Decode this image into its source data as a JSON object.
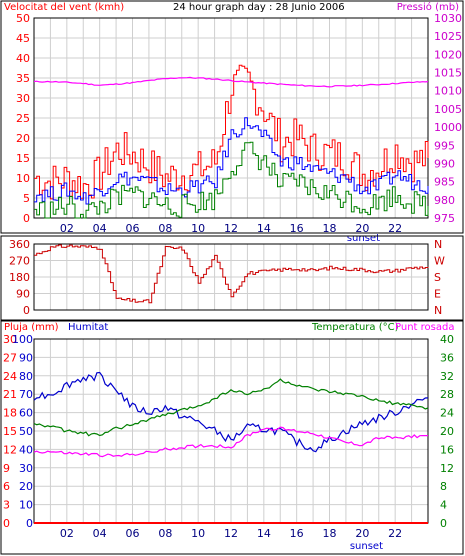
{
  "chart_data": [
    {
      "type": "line",
      "title": "24 hour graph day : 28 Junio 2006",
      "ylabel": "Velocitat del vent (kmh)",
      "y2label": "Pressió (mb)",
      "x_ticks": [
        "02",
        "04",
        "06",
        "08",
        "10",
        "12",
        "14",
        "16",
        "18",
        "20",
        "22"
      ],
      "x_annotation": "sunset",
      "ylim": [
        0,
        50
      ],
      "y_ticks": [
        0,
        5,
        10,
        15,
        20,
        25,
        30,
        35,
        40,
        45,
        50
      ],
      "y2lim": [
        975,
        1030
      ],
      "y2_ticks": [
        975,
        980,
        985,
        990,
        995,
        1000,
        1005,
        1010,
        1015,
        1020,
        1025,
        1030
      ],
      "grid": true,
      "colors": {
        "gust": "#ff0000",
        "avg": "#0000ff",
        "min": "#008000",
        "pressure": "#ff00ff",
        "left_axis": "#ff0000",
        "right_axis": "#cc00cc"
      },
      "series": [
        {
          "key": "gust",
          "color": "#ff0000",
          "x": [
            0,
            1,
            2,
            3,
            4,
            5,
            6,
            7,
            8,
            9,
            10,
            11,
            12,
            13,
            14,
            15,
            16,
            17,
            18,
            19,
            20,
            21,
            22,
            23,
            24
          ],
          "values": [
            10,
            9,
            10,
            8,
            11,
            17,
            16,
            13,
            10,
            11,
            12,
            14,
            33,
            34,
            27,
            19,
            20,
            17,
            16,
            15,
            11,
            13,
            17,
            14,
            15
          ]
        },
        {
          "key": "avg",
          "color": "#0000ff",
          "x": [
            0,
            1,
            2,
            3,
            4,
            5,
            6,
            7,
            8,
            9,
            10,
            11,
            12,
            13,
            14,
            15,
            16,
            17,
            18,
            19,
            20,
            21,
            22,
            23,
            24
          ],
          "values": [
            6,
            6,
            7,
            5,
            7,
            10,
            10,
            9,
            7,
            7,
            8,
            9,
            21,
            24,
            20,
            14,
            14,
            12,
            11,
            10,
            7,
            8,
            11,
            9,
            8
          ]
        },
        {
          "key": "min",
          "color": "#008000",
          "x": [
            0,
            1,
            2,
            3,
            4,
            5,
            6,
            7,
            8,
            9,
            10,
            11,
            12,
            13,
            14,
            15,
            16,
            17,
            18,
            19,
            20,
            21,
            22,
            23,
            24
          ],
          "values": [
            2,
            2,
            3,
            1,
            3,
            5,
            6,
            5,
            3,
            3,
            4,
            5,
            13,
            17,
            14,
            8,
            9,
            7,
            6,
            5,
            3,
            4,
            6,
            4,
            3
          ]
        },
        {
          "key": "pressure",
          "color": "#ff00ff",
          "axis": "right",
          "x": [
            0,
            1,
            2,
            3,
            4,
            5,
            6,
            7,
            8,
            9,
            10,
            11,
            12,
            13,
            14,
            15,
            16,
            17,
            18,
            19,
            20,
            21,
            22,
            23,
            24
          ],
          "values": [
            1012.5,
            1012.5,
            1012.3,
            1012,
            1011.5,
            1011.8,
            1012.2,
            1012.8,
            1013.3,
            1013.6,
            1013.5,
            1013.2,
            1012.8,
            1012.4,
            1012.1,
            1011.8,
            1011.5,
            1011.3,
            1011.2,
            1011.3,
            1011.5,
            1011.7,
            1012,
            1012.3,
            1012.5
          ]
        }
      ]
    },
    {
      "type": "line",
      "ylim": [
        0,
        360
      ],
      "y_ticks": [
        0,
        90,
        180,
        270,
        360
      ],
      "compass_labels": [
        "N",
        "W",
        "S",
        "E",
        "N"
      ],
      "grid": true,
      "colors": {
        "direction": "#ff0000"
      },
      "series": [
        {
          "key": "direction",
          "color": "#cc0000",
          "x": [
            0,
            1,
            2,
            3,
            4,
            5,
            6,
            7,
            8,
            9,
            10,
            11,
            12,
            13,
            14,
            15,
            16,
            17,
            18,
            19,
            20,
            21,
            22,
            23,
            24
          ],
          "values": [
            300,
            340,
            350,
            345,
            340,
            60,
            50,
            45,
            340,
            335,
            150,
            290,
            80,
            200,
            210,
            220,
            225,
            215,
            230,
            225,
            220,
            210,
            215,
            230,
            235
          ]
        }
      ]
    },
    {
      "type": "line",
      "ylabel": "Pluja (mm)",
      "ylabel2": "Humitat",
      "y2label": "Temperatura (°C)",
      "y2label2": "Punt rosada",
      "x_ticks": [
        "02",
        "04",
        "06",
        "08",
        "10",
        "12",
        "14",
        "16",
        "18",
        "20",
        "22"
      ],
      "x_annotation": "sunset",
      "rain_ticks": [
        0,
        3,
        6,
        9,
        12,
        15,
        18,
        21,
        24,
        27,
        30
      ],
      "humidity_ticks": [
        0,
        10,
        20,
        30,
        40,
        50,
        60,
        70,
        80,
        90,
        100
      ],
      "ylim": [
        0,
        100
      ],
      "y2lim": [
        0,
        40
      ],
      "y2_ticks": [
        0,
        4,
        8,
        12,
        16,
        20,
        24,
        28,
        32,
        36,
        40
      ],
      "grid": true,
      "colors": {
        "rain": "#ff0000",
        "humidity": "#0000cc",
        "temperature": "#008000",
        "dewpoint": "#ff00ff"
      },
      "series": [
        {
          "key": "rain",
          "color": "#ff0000",
          "x": [
            0,
            24
          ],
          "values": [
            0,
            0
          ]
        },
        {
          "key": "humidity",
          "color": "#0000cc",
          "x": [
            0,
            1,
            2,
            3,
            4,
            5,
            6,
            7,
            8,
            9,
            10,
            11,
            12,
            13,
            14,
            15,
            16,
            17,
            18,
            19,
            20,
            21,
            22,
            23,
            24
          ],
          "values": [
            69,
            70,
            75,
            79,
            80,
            73,
            63,
            60,
            63,
            58,
            55,
            50,
            45,
            52,
            51,
            50,
            44,
            40,
            45,
            50,
            54,
            57,
            60,
            65,
            68
          ]
        },
        {
          "key": "temperature",
          "color": "#008000",
          "axis": "right",
          "x": [
            0,
            1,
            2,
            3,
            4,
            5,
            6,
            7,
            8,
            9,
            10,
            11,
            12,
            13,
            14,
            15,
            16,
            17,
            18,
            19,
            20,
            21,
            22,
            23,
            24
          ],
          "values": [
            21.5,
            21,
            20,
            19.5,
            19,
            20.5,
            21.5,
            22.5,
            23.5,
            24.5,
            25.5,
            27,
            29,
            28,
            29,
            31,
            30,
            29,
            28.5,
            28,
            27.5,
            26.5,
            26,
            25.5,
            25
          ]
        },
        {
          "key": "dewpoint",
          "color": "#ff00ff",
          "axis": "right",
          "x": [
            0,
            1,
            2,
            3,
            4,
            5,
            6,
            7,
            8,
            9,
            10,
            11,
            12,
            13,
            14,
            15,
            16,
            17,
            18,
            19,
            20,
            21,
            22,
            23,
            24
          ],
          "values": [
            15.5,
            15.5,
            15.2,
            15,
            14.8,
            14.5,
            15,
            15.3,
            16,
            16.4,
            16.8,
            16.8,
            16.5,
            19,
            20.5,
            20.5,
            20,
            19.5,
            18.5,
            17.5,
            17,
            18.5,
            18.5,
            18.8,
            19
          ]
        }
      ]
    }
  ]
}
